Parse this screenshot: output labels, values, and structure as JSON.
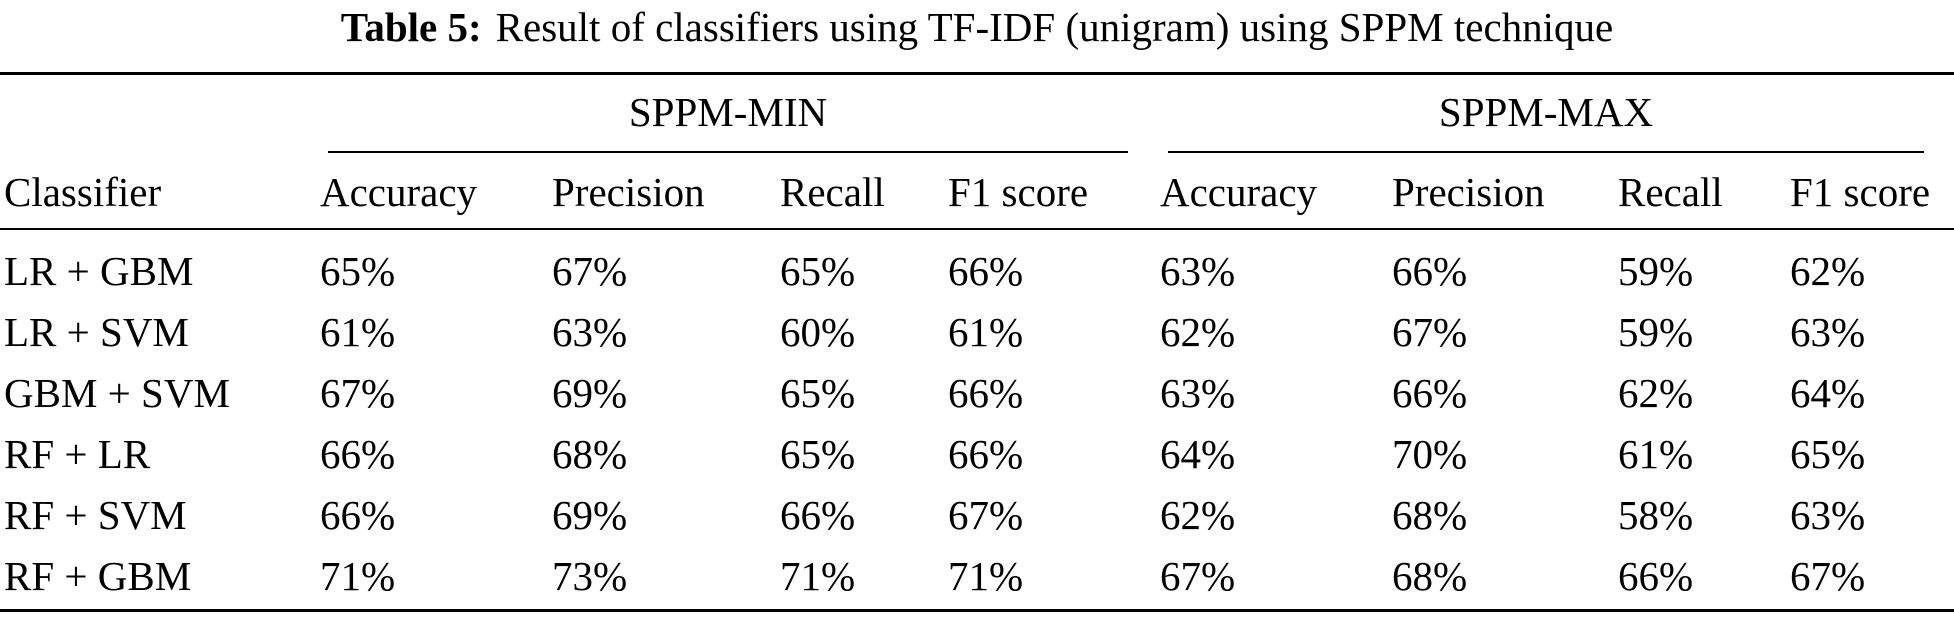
{
  "caption": {
    "label": "Table 5:",
    "text": "Result of classifiers using TF-IDF (unigram) using SPPM technique"
  },
  "table": {
    "groups": [
      "SPPM-MIN",
      "SPPM-MAX"
    ],
    "columns": [
      "Classifier",
      "Accuracy",
      "Precision",
      "Recall",
      "F1 score",
      "Accuracy",
      "Precision",
      "Recall",
      "F1 score"
    ],
    "rows": [
      [
        "LR + GBM",
        "65%",
        "67%",
        "65%",
        "66%",
        "63%",
        "66%",
        "59%",
        "62%"
      ],
      [
        "LR + SVM",
        "61%",
        "63%",
        "60%",
        "61%",
        "62%",
        "67%",
        "59%",
        "63%"
      ],
      [
        "GBM + SVM",
        "67%",
        "69%",
        "65%",
        "66%",
        "63%",
        "66%",
        "62%",
        "64%"
      ],
      [
        "RF + LR",
        "66%",
        "68%",
        "65%",
        "66%",
        "64%",
        "70%",
        "61%",
        "65%"
      ],
      [
        "RF + SVM",
        "66%",
        "69%",
        "66%",
        "67%",
        "62%",
        "68%",
        "58%",
        "63%"
      ],
      [
        "RF + GBM",
        "71%",
        "73%",
        "71%",
        "71%",
        "67%",
        "68%",
        "66%",
        "67%"
      ]
    ]
  }
}
